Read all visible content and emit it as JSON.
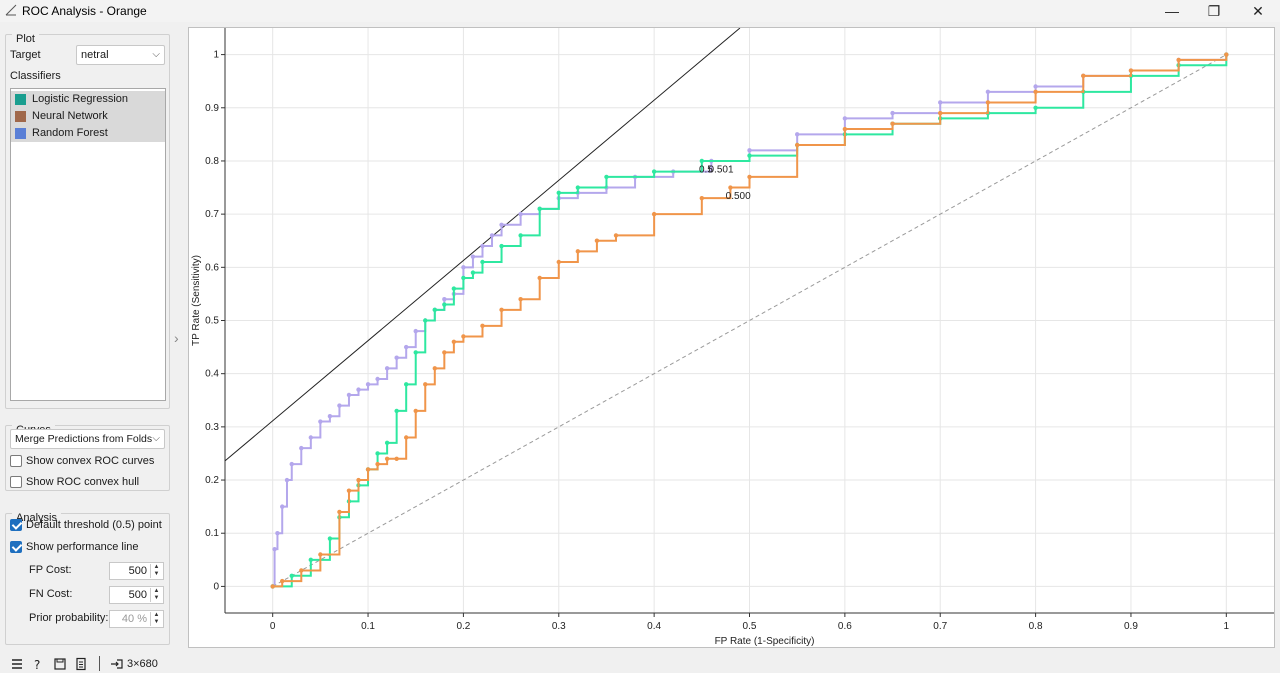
{
  "window": {
    "title": "ROC Analysis - Orange",
    "minimize_symbol": "—",
    "maximize_symbol": "❐",
    "close_symbol": "✕"
  },
  "plot_panel": {
    "title": "Plot",
    "target_label": "Target",
    "target_value": "netral",
    "classifiers_label": "Classifiers",
    "classifiers": [
      {
        "name": "Logistic Regression",
        "color": "#1a9e8f"
      },
      {
        "name": "Neural Network",
        "color": "#a0684a"
      },
      {
        "name": "Random Forest",
        "color": "#5a7fd6"
      }
    ]
  },
  "curves_panel": {
    "title": "Curves",
    "merge_value": "Merge Predictions from Folds",
    "show_convex_roc": "Show convex ROC curves",
    "show_convex_hull": "Show ROC convex hull"
  },
  "analysis_panel": {
    "title": "Analysis",
    "default_threshold": "Default threshold (0.5) point",
    "show_performance_line": "Show performance line",
    "fp_cost_label": "FP Cost:",
    "fp_cost_value": "500",
    "fn_cost_label": "FN Cost:",
    "fn_cost_value": "500",
    "prior_label": "Prior probability:",
    "prior_value": "40 %"
  },
  "statusbar": {
    "data_size": "3×680",
    "icons": [
      "menu-icon",
      "help-icon",
      "save-icon",
      "report-icon",
      "output-icon"
    ]
  },
  "chart_data": {
    "type": "line",
    "xlabel": "FP Rate (1-Specificity)",
    "ylabel": "TP Rate (Sensitivity)",
    "xlim": [
      -0.05,
      1.05
    ],
    "ylim": [
      -0.05,
      1.05
    ],
    "xticks": [
      "0",
      "0.1",
      "0.2",
      "0.3",
      "0.4",
      "0.5",
      "0.6",
      "0.7",
      "0.8",
      "0.9",
      "1"
    ],
    "yticks": [
      "0",
      "0.1",
      "0.2",
      "0.3",
      "0.4",
      "0.5",
      "0.6",
      "0.7",
      "0.8",
      "0.9",
      "1"
    ],
    "grid": true,
    "series": [
      {
        "color": "#b4a7ec",
        "x": [
          0,
          0.002,
          0.005,
          0.01,
          0.015,
          0.02,
          0.03,
          0.04,
          0.05,
          0.06,
          0.07,
          0.08,
          0.09,
          0.1,
          0.11,
          0.12,
          0.13,
          0.14,
          0.15,
          0.16,
          0.17,
          0.18,
          0.19,
          0.2,
          0.21,
          0.22,
          0.23,
          0.24,
          0.26,
          0.28,
          0.3,
          0.32,
          0.35,
          0.38,
          0.42,
          0.46,
          0.5,
          0.55,
          0.6,
          0.65,
          0.7,
          0.75,
          0.8,
          0.85,
          0.9,
          0.95,
          1.0
        ],
        "y": [
          0,
          0.07,
          0.1,
          0.15,
          0.2,
          0.23,
          0.26,
          0.28,
          0.31,
          0.32,
          0.34,
          0.36,
          0.37,
          0.38,
          0.39,
          0.41,
          0.43,
          0.45,
          0.48,
          0.5,
          0.52,
          0.54,
          0.55,
          0.6,
          0.62,
          0.64,
          0.66,
          0.68,
          0.7,
          0.71,
          0.73,
          0.74,
          0.75,
          0.77,
          0.78,
          0.8,
          0.82,
          0.85,
          0.88,
          0.89,
          0.91,
          0.93,
          0.94,
          0.96,
          0.97,
          0.99,
          1.0
        ]
      },
      {
        "color": "#2ee8a0",
        "x": [
          0,
          0.02,
          0.04,
          0.06,
          0.07,
          0.08,
          0.09,
          0.1,
          0.11,
          0.12,
          0.13,
          0.14,
          0.15,
          0.16,
          0.17,
          0.18,
          0.19,
          0.2,
          0.21,
          0.22,
          0.24,
          0.26,
          0.28,
          0.3,
          0.32,
          0.35,
          0.4,
          0.45,
          0.5,
          0.55,
          0.6,
          0.65,
          0.7,
          0.75,
          0.8,
          0.85,
          0.9,
          0.95,
          1.0
        ],
        "y": [
          0,
          0.02,
          0.05,
          0.09,
          0.13,
          0.16,
          0.19,
          0.22,
          0.25,
          0.27,
          0.33,
          0.38,
          0.44,
          0.5,
          0.52,
          0.53,
          0.56,
          0.58,
          0.59,
          0.61,
          0.64,
          0.66,
          0.71,
          0.74,
          0.75,
          0.77,
          0.78,
          0.8,
          0.81,
          0.83,
          0.85,
          0.87,
          0.88,
          0.89,
          0.9,
          0.93,
          0.96,
          0.98,
          1.0
        ]
      },
      {
        "color": "#f0954a",
        "x": [
          0,
          0.01,
          0.03,
          0.05,
          0.07,
          0.08,
          0.09,
          0.1,
          0.11,
          0.12,
          0.13,
          0.14,
          0.15,
          0.16,
          0.17,
          0.18,
          0.19,
          0.2,
          0.22,
          0.24,
          0.26,
          0.28,
          0.3,
          0.32,
          0.34,
          0.36,
          0.4,
          0.45,
          0.48,
          0.5,
          0.55,
          0.6,
          0.65,
          0.7,
          0.75,
          0.8,
          0.85,
          0.9,
          0.95,
          1.0
        ],
        "y": [
          0,
          0.01,
          0.03,
          0.06,
          0.14,
          0.18,
          0.2,
          0.22,
          0.23,
          0.24,
          0.24,
          0.28,
          0.33,
          0.38,
          0.41,
          0.44,
          0.46,
          0.47,
          0.49,
          0.52,
          0.54,
          0.58,
          0.61,
          0.63,
          0.65,
          0.66,
          0.7,
          0.73,
          0.75,
          0.77,
          0.83,
          0.86,
          0.87,
          0.89,
          0.91,
          0.93,
          0.96,
          0.97,
          0.99,
          1.0
        ]
      }
    ],
    "diagonal": {
      "x": [
        0,
        1
      ],
      "y": [
        0,
        1
      ],
      "style": "dashed",
      "color": "#9a9a9a"
    },
    "performance_line": {
      "x": [
        -0.05,
        0.49
      ],
      "y": [
        0.236,
        1.05
      ],
      "color": "#222222"
    },
    "annotations": [
      {
        "text": "0.5",
        "x": 0.447,
        "y": 0.778
      },
      {
        "text": "0.501",
        "x": 0.457,
        "y": 0.778
      },
      {
        "text": "0.500",
        "x": 0.475,
        "y": 0.728
      }
    ]
  }
}
